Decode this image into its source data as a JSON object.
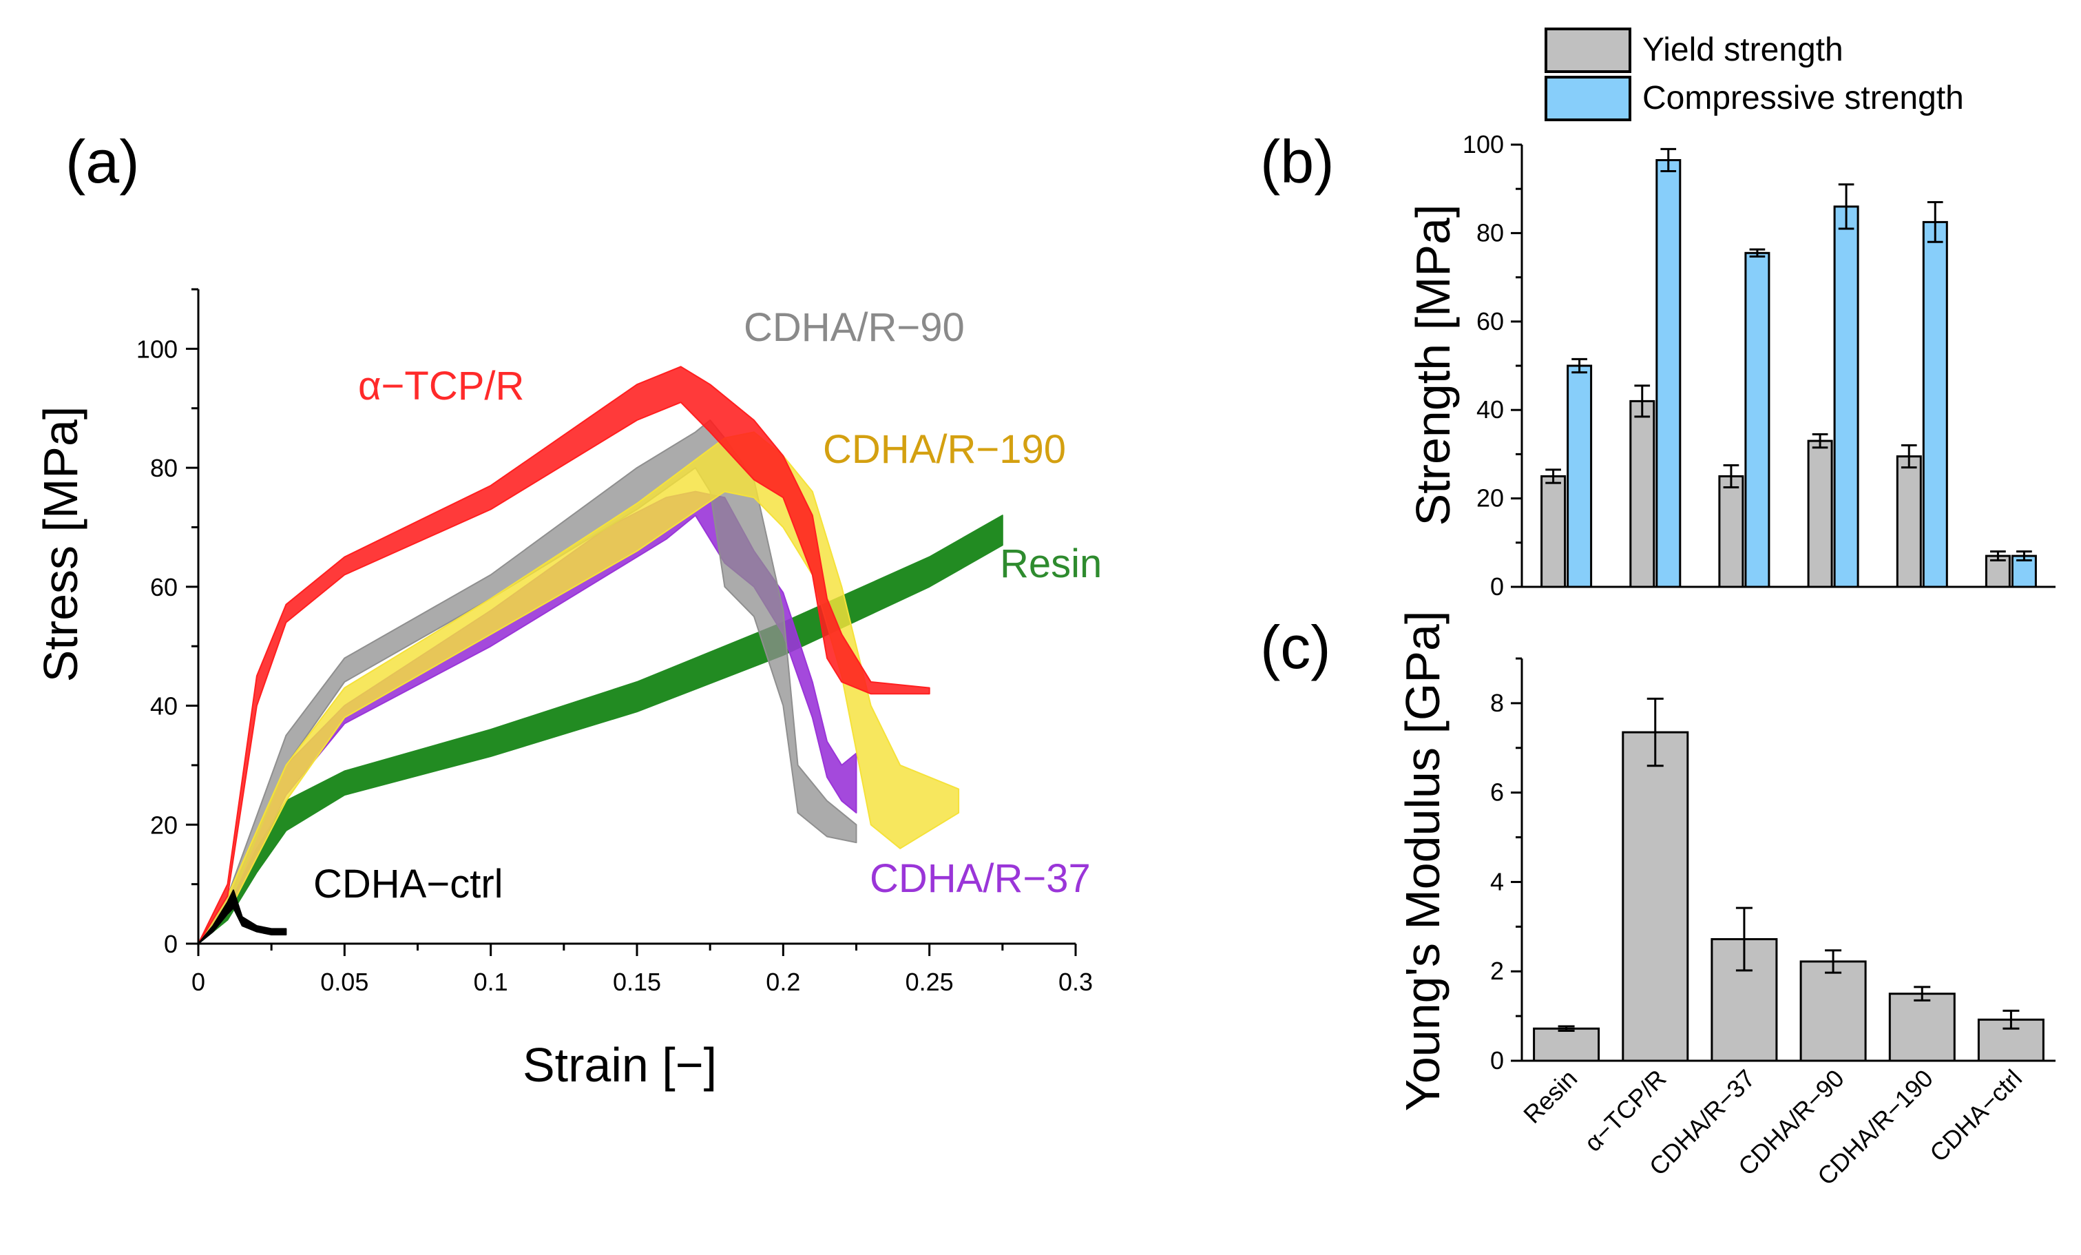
{
  "panels": {
    "a": {
      "letter": "(a)",
      "chart_data": {
        "type": "area",
        "title": "",
        "xlabel": "Strain [−]",
        "ylabel": "Stress [MPa]",
        "xlim": [
          0,
          0.3
        ],
        "ylim": [
          0,
          110
        ],
        "xticks": [
          0,
          0.05,
          0.1,
          0.15,
          0.2,
          0.25,
          0.3
        ],
        "xtick_labels": [
          "0",
          "0.05",
          "0.1",
          "0.15",
          "0.2",
          "0.25",
          "0.3"
        ],
        "yticks": [
          0,
          20,
          40,
          60,
          80,
          100
        ],
        "ytick_labels": [
          "0",
          "20",
          "40",
          "60",
          "80",
          "100"
        ],
        "series": [
          {
            "name": "Resin",
            "label": "Resin",
            "color": "#228b22",
            "opacity": 1.0,
            "x": [
              0,
              0.01,
              0.02,
              0.03,
              0.05,
              0.1,
              0.15,
              0.2,
              0.25,
              0.275
            ],
            "lo": [
              0,
              4,
              12,
              19,
              25,
              31.5,
              39,
              48.5,
              60,
              67
            ],
            "hi": [
              0,
              6,
              16,
              24,
              29,
              36,
              44,
              54,
              65,
              72
            ]
          },
          {
            "name": "CDHA/R-37",
            "label": "CDHA/R−37",
            "color": "#9a35d8",
            "opacity": 0.9,
            "x": [
              0,
              0.01,
              0.03,
              0.05,
              0.1,
              0.14,
              0.16,
              0.17,
              0.18,
              0.19,
              0.2,
              0.21,
              0.215,
              0.22,
              0.225
            ],
            "lo": [
              0,
              5,
              25,
              37,
              50,
              62,
              68,
              72,
              64,
              60,
              52,
              38,
              28,
              24,
              22
            ],
            "hi": [
              0,
              7,
              30,
              40,
              56,
              70,
              75,
              76,
              75,
              66,
              59,
              44,
              34,
              30,
              32
            ]
          },
          {
            "name": "CDHA/R-90",
            "label": "CDHA/R−90",
            "color": "#8f8f8f",
            "opacity": 0.75,
            "x": [
              0,
              0.01,
              0.03,
              0.05,
              0.1,
              0.15,
              0.17,
              0.175,
              0.18,
              0.19,
              0.2,
              0.205,
              0.215,
              0.225
            ],
            "lo": [
              0,
              6,
              30,
              44,
              58,
              73,
              80,
              76,
              60,
              55,
              40,
              22,
              18,
              17
            ],
            "hi": [
              0,
              8,
              35,
              48,
              62,
              80,
              86,
              88,
              85,
              78,
              56,
              30,
              24,
              20
            ]
          },
          {
            "name": "CDHA/R-190",
            "label": "CDHA/R−190",
            "color": "#f5e23a",
            "opacity": 0.82,
            "x": [
              0,
              0.01,
              0.03,
              0.05,
              0.1,
              0.15,
              0.18,
              0.19,
              0.2,
              0.21,
              0.22,
              0.23,
              0.24,
              0.26
            ],
            "lo": [
              0,
              5,
              24,
              38,
              52,
              66,
              76,
              75,
              70,
              62,
              45,
              20,
              16,
              22
            ],
            "hi": [
              0,
              8,
              30,
              43,
              58,
              74,
              85,
              86,
              82,
              76,
              60,
              40,
              30,
              26
            ]
          },
          {
            "name": "α-TCP/R",
            "label": "α−TCP/R",
            "color": "#ff1f1f",
            "opacity": 0.88,
            "x": [
              0,
              0.01,
              0.02,
              0.03,
              0.05,
              0.1,
              0.15,
              0.165,
              0.175,
              0.19,
              0.2,
              0.21,
              0.215,
              0.22,
              0.23,
              0.25
            ],
            "lo": [
              0,
              8,
              40,
              54,
              62,
              73,
              88,
              91,
              86,
              78,
              75,
              62,
              48,
              44,
              42,
              42
            ],
            "hi": [
              0,
              10,
              45,
              57,
              65,
              77,
              94,
              97,
              94,
              88,
              82,
              72,
              58,
              52,
              44,
              43
            ]
          },
          {
            "name": "CDHA-ctrl",
            "label": "CDHA−ctrl",
            "color": "#000000",
            "opacity": 1.0,
            "x": [
              0,
              0.005,
              0.01,
              0.012,
              0.015,
              0.02,
              0.025,
              0.03
            ],
            "lo": [
              0,
              2,
              5,
              6,
              3,
              2,
              1.5,
              1.5
            ],
            "hi": [
              0,
              3,
              7,
              9,
              4.5,
              3,
              2.5,
              2.5
            ]
          }
        ]
      }
    },
    "b": {
      "letter": "(b)",
      "chart_data": {
        "type": "bar",
        "title": "",
        "xlabel": "",
        "ylabel": "Strength [MPa]",
        "ylim": [
          0,
          100
        ],
        "yticks": [
          0,
          20,
          40,
          60,
          80,
          100
        ],
        "ytick_labels": [
          "0",
          "20",
          "40",
          "60",
          "80",
          "100"
        ],
        "categories": [
          "Resin",
          "α−TCP/R",
          "CDHA/R−37",
          "CDHA/R−90",
          "CDHA/R−190",
          "CDHA−ctrl"
        ],
        "series": [
          {
            "name": "Yield strength",
            "color": "#c0c0c0",
            "values": [
              25,
              42,
              25,
              33,
              29.5,
              7
            ],
            "errors": [
              1.5,
              3.5,
              2.5,
              1.5,
              2.5,
              1
            ]
          },
          {
            "name": "Compressive strength",
            "color": "#87cefa",
            "values": [
              50,
              96.5,
              75.5,
              86,
              82.5,
              7
            ],
            "errors": [
              1.5,
              2.5,
              0.8,
              5,
              4.5,
              1
            ]
          }
        ],
        "legend": {
          "placement": "top-right",
          "items": [
            "Yield strength",
            "Compressive strength"
          ]
        }
      }
    },
    "c": {
      "letter": "(c)",
      "chart_data": {
        "type": "bar",
        "title": "",
        "xlabel": "",
        "ylabel": "Young's Modulus [GPa]",
        "ylim": [
          0,
          9
        ],
        "yticks": [
          0,
          2,
          4,
          6,
          8
        ],
        "ytick_labels": [
          "0",
          "2",
          "4",
          "6",
          "8"
        ],
        "categories": [
          "Resin",
          "α−TCP/R",
          "CDHA/R−37",
          "CDHA/R−90",
          "CDHA/R−190",
          "CDHA−ctrl"
        ],
        "series": [
          {
            "name": "Young's Modulus",
            "color": "#c0c0c0",
            "values": [
              0.72,
              7.35,
              2.72,
              2.22,
              1.5,
              0.92
            ],
            "errors": [
              0.05,
              0.75,
              0.7,
              0.25,
              0.15,
              0.2
            ]
          }
        ]
      }
    }
  }
}
